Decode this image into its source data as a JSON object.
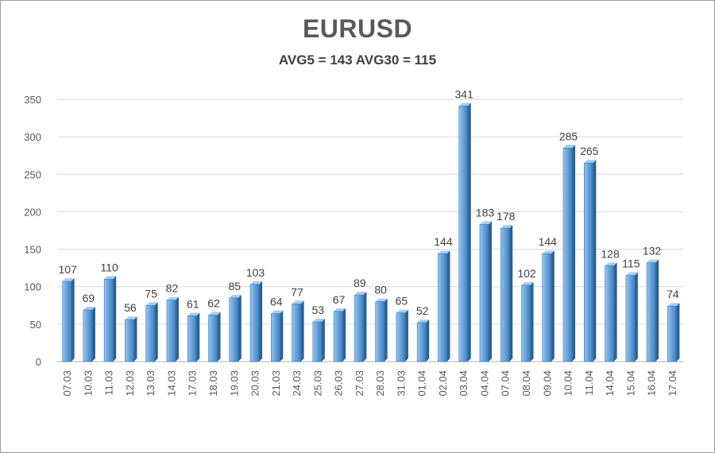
{
  "chart_data": {
    "type": "bar",
    "title": "EURUSD",
    "subtitle": "AVG5 = 143 AVG30 = 115",
    "xlabel": "",
    "ylabel": "",
    "ylim": [
      0,
      350
    ],
    "yticks": [
      0,
      50,
      100,
      150,
      200,
      250,
      300,
      350
    ],
    "grid": true,
    "legend": "none",
    "bar_color": "#5b9bd5",
    "categories": [
      "07.03",
      "10.03",
      "11.03",
      "12.03",
      "13.03",
      "14.03",
      "17.03",
      "18.03",
      "19.03",
      "20.03",
      "21.03",
      "24.03",
      "25.03",
      "26.03",
      "27.03",
      "28.03",
      "31.03",
      "01.04",
      "02.04",
      "03.04",
      "04.04",
      "07.04",
      "08.04",
      "09.04",
      "10.04",
      "11.04",
      "14.04",
      "15.04",
      "16.04",
      "17.04"
    ],
    "values": [
      107,
      69,
      110,
      56,
      75,
      82,
      61,
      62,
      85,
      103,
      64,
      77,
      53,
      67,
      89,
      80,
      65,
      52,
      144,
      341,
      183,
      178,
      102,
      144,
      285,
      265,
      128,
      115,
      132,
      74
    ]
  }
}
